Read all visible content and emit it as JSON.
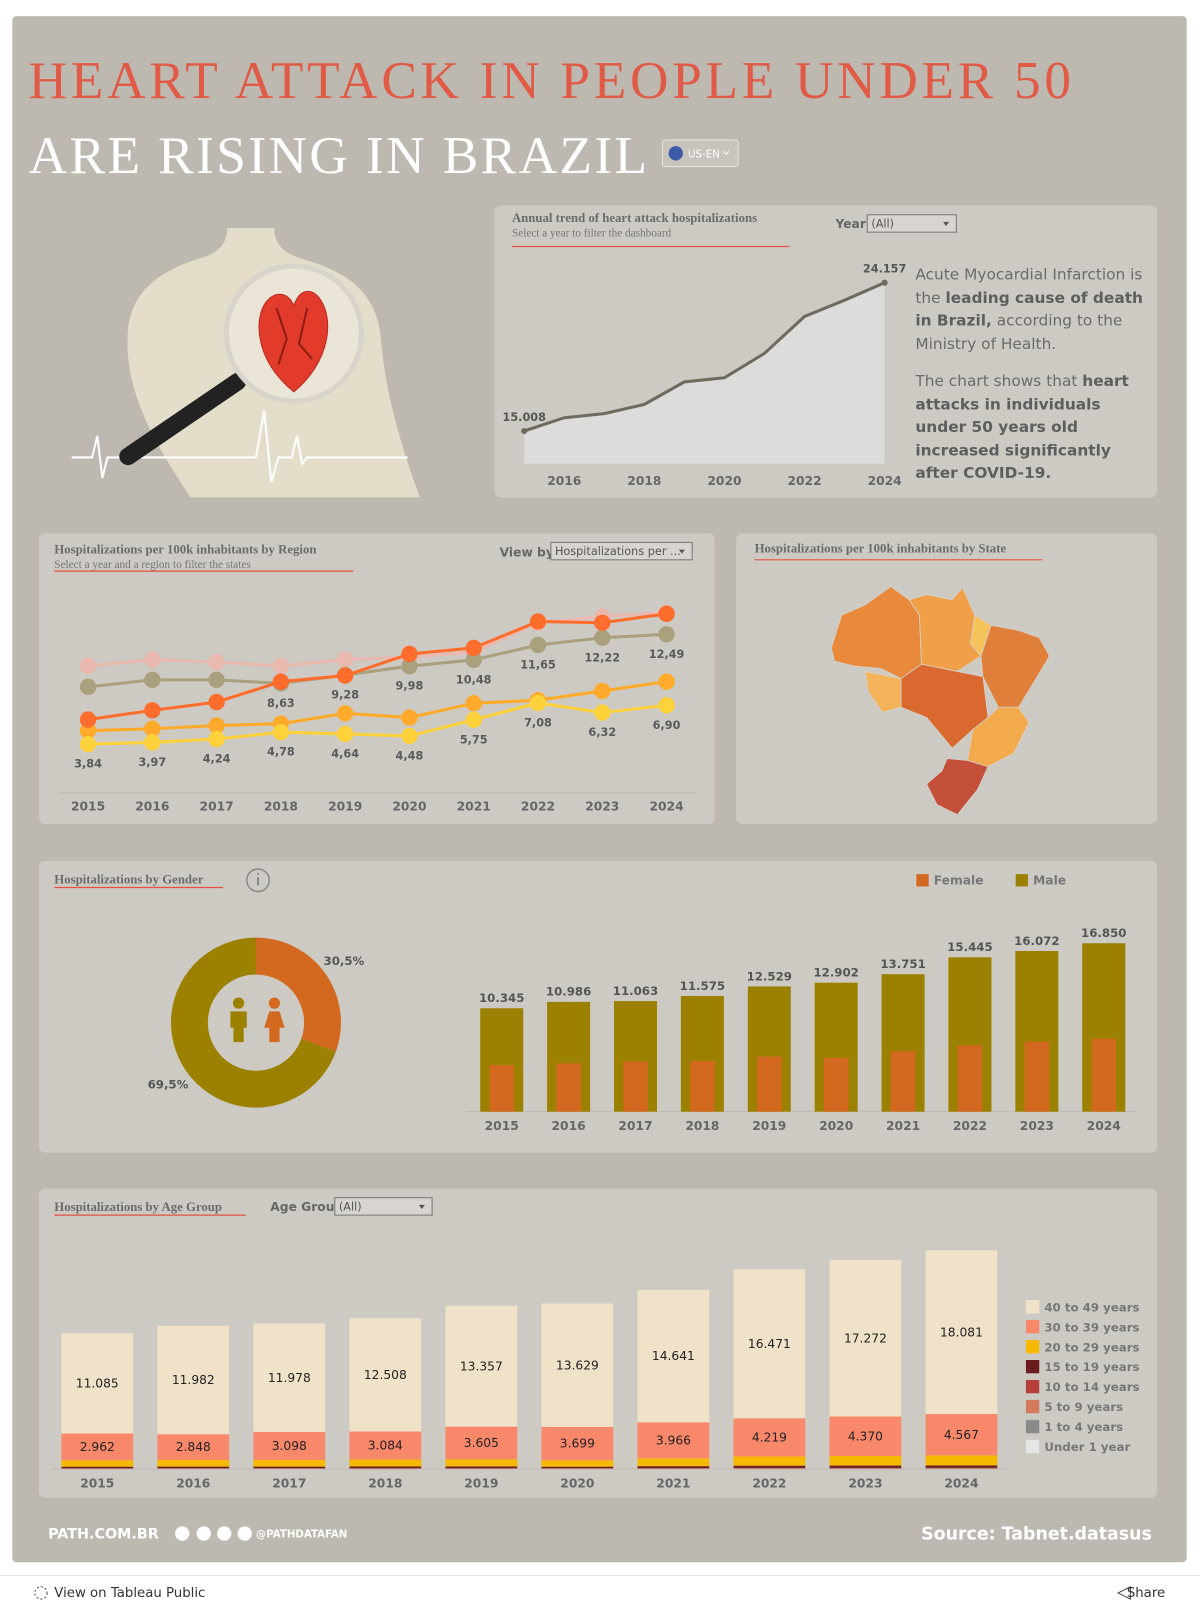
{
  "header": {
    "title_line1": "HEART ATTACK IN PEOPLE UNDER 50",
    "title_line2": "ARE RISING IN BRAZIL",
    "language": "US-EN"
  },
  "intro": [
    [
      {
        "text": "Acute Myocardial Infarction is the "
      },
      {
        "text": "leading cause of death in Brazil,",
        "bold": true
      },
      {
        "text": " according to the Ministry of Health."
      }
    ],
    [
      {
        "text": "The chart shows that "
      },
      {
        "text": "heart attacks in individuals under 50 years old increased significantly after COVID-19.",
        "bold": true
      }
    ]
  ],
  "chart_data": [
    {
      "type": "area",
      "title": "Annual trend of heart attack hospitalizations",
      "subtitle": "Select a year to filter the dashboard",
      "filter_label": "Year",
      "filter_value": "(All)",
      "x": [
        2015,
        2016,
        2017,
        2018,
        2019,
        2020,
        2021,
        2022,
        2023,
        2024
      ],
      "values": [
        15008,
        15828,
        16080,
        16650,
        18040,
        18290,
        19800,
        22075,
        23080,
        24157
      ],
      "value_labels": [
        "15.008",
        null,
        null,
        null,
        null,
        null,
        null,
        null,
        null,
        "24.157"
      ],
      "xlim": [
        2015,
        2024
      ],
      "xticks": [
        2016,
        2018,
        2020,
        2022,
        2024
      ],
      "ylim": [
        13000,
        25000
      ],
      "color": "#6e6b5e",
      "area_color": "#dddcda"
    },
    {
      "type": "line",
      "title": "Hospitalizations per 100k inhabitants by Region",
      "subtitle": "Select a year and a region to filter the states",
      "filter_label": "View by",
      "filter_value": "Hospitalizations per ...",
      "x": [
        2015,
        2016,
        2017,
        2018,
        2019,
        2020,
        2021,
        2022,
        2023,
        2024
      ],
      "xlim": [
        2015,
        2024
      ],
      "xticks": [
        2015,
        2016,
        2017,
        2018,
        2019,
        2020,
        2021,
        2022,
        2023,
        2024
      ],
      "ylim": [
        0,
        15.6
      ],
      "series": [
        {
          "color": "#e9b8ae",
          "values": [
            10.0,
            10.5,
            10.3,
            10.0,
            10.5,
            10.7,
            11.1,
            13.4,
            13.9,
            14.2
          ]
        },
        {
          "color": "#aaa07e",
          "values": [
            8.35,
            8.9,
            8.9,
            8.63,
            9.28,
            9.98,
            10.48,
            11.65,
            12.22,
            12.49
          ],
          "value_labels": [
            null,
            null,
            null,
            "8,63",
            "9,28",
            "9,98",
            "10,48",
            "11,65",
            "12,22",
            "12,49"
          ]
        },
        {
          "color": "#ffaa2a",
          "values": [
            4.9,
            5.05,
            5.3,
            5.45,
            6.26,
            5.93,
            7.06,
            7.3,
            8.03,
            8.76
          ]
        },
        {
          "color": "#ff6d2d",
          "values": [
            5.77,
            6.5,
            7.15,
            8.76,
            9.24,
            10.94,
            11.42,
            13.5,
            13.4,
            14.1
          ]
        },
        {
          "color": "#ffd23c",
          "values": [
            3.84,
            3.97,
            4.24,
            4.78,
            4.64,
            4.48,
            5.75,
            7.08,
            6.32,
            6.9
          ],
          "value_labels": [
            "3,84",
            "3,97",
            "4,24",
            "4,78",
            "4,64",
            "4,48",
            "5,75",
            "7,08",
            "6,32",
            "6,90"
          ]
        }
      ]
    },
    {
      "type": "map",
      "title": "Hospitalizations per 100k inhabitants by State"
    },
    {
      "type": "donut",
      "title": "Hospitalizations by Gender",
      "values": [
        30.5,
        69.5
      ],
      "value_labels": [
        "30,5%",
        "69,5%"
      ],
      "colors": [
        "#d2691e",
        "#9c8100"
      ]
    },
    {
      "type": "bar",
      "categories": [
        2015,
        2016,
        2017,
        2018,
        2019,
        2020,
        2021,
        2022,
        2023,
        2024
      ],
      "ylim": [
        0,
        17000
      ],
      "series": [
        {
          "name": "Female",
          "color": "#d2691e",
          "values": [
            4663,
            4842,
            5017,
            5075,
            5511,
            5388,
            6049,
            6630,
            7008,
            7307
          ]
        },
        {
          "name": "Male",
          "color": "#9c8100",
          "values": [
            10345,
            10986,
            11063,
            11575,
            12529,
            12902,
            13751,
            15445,
            16072,
            16850
          ],
          "value_labels": [
            "10.345",
            "10.986",
            "11.063",
            "11.575",
            "12.529",
            "12.902",
            "13.751",
            "15.445",
            "16.072",
            "16.850"
          ]
        }
      ]
    },
    {
      "type": "stacked_bar",
      "title": "Hospitalizations by Age Group",
      "filter_label": "Age Group",
      "filter_value": "(All)",
      "categories": [
        2015,
        2016,
        2017,
        2018,
        2019,
        2020,
        2021,
        2022,
        2023,
        2024
      ],
      "ylim": [
        0,
        25000
      ],
      "series": [
        {
          "name": "40 to 49 years",
          "color": "#f0e2c8",
          "values": [
            11085,
            11982,
            11978,
            12508,
            13357,
            13629,
            14641,
            16471,
            17272,
            18081
          ],
          "value_labels": [
            "11.085",
            "11.982",
            "11.978",
            "12.508",
            "13.357",
            "13.629",
            "14.641",
            "16.471",
            "17.272",
            "18.081"
          ]
        },
        {
          "name": "30 to 39 years",
          "color": "#f9876a",
          "values": [
            2962,
            2848,
            3098,
            3084,
            3605,
            3699,
            3966,
            4219,
            4370,
            4567
          ],
          "value_labels": [
            "2.962",
            "2.848",
            "3.098",
            "3.084",
            "3.605",
            "3.699",
            "3.966",
            "4.219",
            "4.370",
            "4.567"
          ]
        },
        {
          "name": "20 to 29 years",
          "color": "#f6b800",
          "values": [
            700,
            730,
            735,
            775,
            790,
            700,
            875,
            1015,
            1055,
            1110
          ]
        },
        {
          "name": "15 to 19 years",
          "color": "#6b1d1d",
          "values": [
            170,
            175,
            175,
            185,
            190,
            170,
            210,
            245,
            255,
            265
          ]
        },
        {
          "name": "10 to 14 years",
          "color": "#b8403a",
          "values": [
            40,
            40,
            40,
            42,
            42,
            40,
            48,
            55,
            56,
            58
          ]
        },
        {
          "name": "5 to 9 years",
          "color": "#d27a5a",
          "values": [
            20,
            20,
            20,
            22,
            22,
            20,
            25,
            30,
            30,
            32
          ]
        },
        {
          "name": "1 to 4 years",
          "color": "#8a8a8a",
          "values": [
            16,
            18,
            18,
            18,
            18,
            17,
            18,
            22,
            24,
            25
          ]
        },
        {
          "name": "Under 1 year",
          "color": "#e5e5e5",
          "values": [
            15,
            15,
            16,
            16,
            16,
            15,
            17,
            18,
            18,
            19
          ]
        }
      ]
    }
  ],
  "footer": {
    "site": "PATH.COM.BR",
    "handle": "@PATHDATAFAN",
    "source": "Source: Tabnet.datasus"
  },
  "toolbar": {
    "view": "View on Tableau Public",
    "share": "Share"
  }
}
